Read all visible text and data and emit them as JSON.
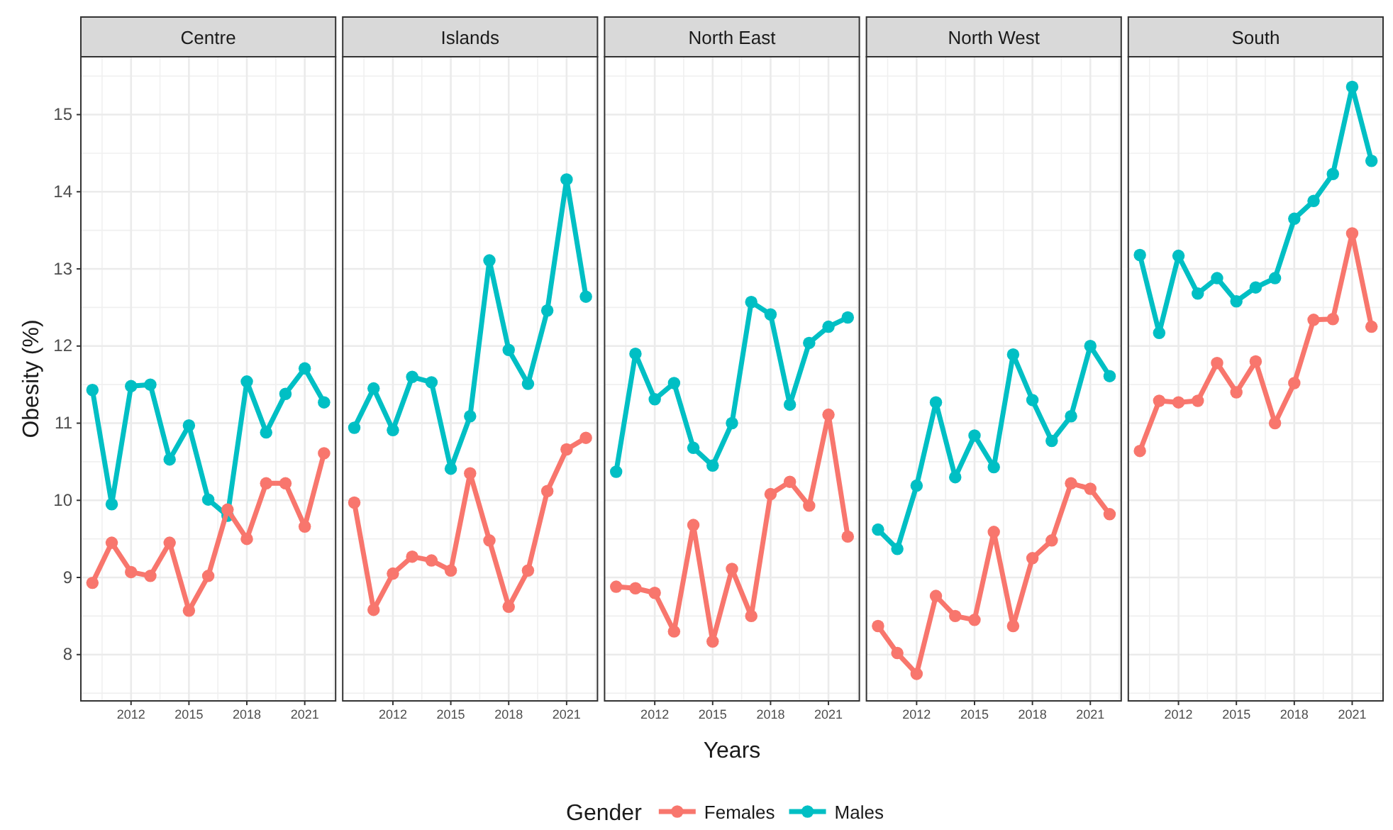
{
  "chart_data": [
    {
      "type": "line",
      "title": "Centre",
      "ylabel": "Obesity (%)",
      "legend_title": "Gender",
      "legend": "bottom",
      "grid": true,
      "marker": "circle",
      "line_style": "solid",
      "x": [
        2010,
        2011,
        2012,
        2013,
        2014,
        2015,
        2016,
        2017,
        2018,
        2019,
        2020,
        2021,
        2022
      ],
      "xlim": [
        2009.4,
        2022.6
      ],
      "xticks": [
        2012,
        2015,
        2018,
        2021
      ],
      "ylim": [
        7.4,
        15.75
      ],
      "yticks": [
        8,
        9,
        10,
        11,
        12,
        13,
        14,
        15
      ],
      "series": [
        {
          "name": "Females",
          "color": "#f8766d",
          "values": [
            8.93,
            9.45,
            9.07,
            9.02,
            9.45,
            8.57,
            9.02,
            9.88,
            9.5,
            10.22,
            10.22,
            9.66,
            10.61
          ]
        },
        {
          "name": "Males",
          "color": "#00bfc4",
          "values": [
            11.43,
            9.95,
            11.48,
            11.5,
            10.53,
            10.97,
            10.01,
            9.8,
            11.54,
            10.88,
            11.38,
            11.71,
            11.27
          ]
        }
      ]
    },
    {
      "type": "line",
      "title": "Islands",
      "tick_labels": "x",
      "grid": true,
      "marker": "circle",
      "line_style": "solid",
      "x": [
        2010,
        2011,
        2012,
        2013,
        2014,
        2015,
        2016,
        2017,
        2018,
        2019,
        2020,
        2021,
        2022
      ],
      "xlim": [
        2009.4,
        2022.6
      ],
      "xticks": [
        2012,
        2015,
        2018,
        2021
      ],
      "ylim": [
        7.4,
        15.75
      ],
      "yticks": [
        8,
        9,
        10,
        11,
        12,
        13,
        14,
        15
      ],
      "series": [
        {
          "color": "#f8766d",
          "values": [
            9.97,
            8.58,
            9.05,
            9.27,
            9.22,
            9.09,
            10.35,
            9.48,
            8.62,
            9.09,
            10.12,
            10.66,
            10.81
          ]
        },
        {
          "color": "#00bfc4",
          "values": [
            10.94,
            11.45,
            10.91,
            11.6,
            11.53,
            10.41,
            11.09,
            13.11,
            11.95,
            11.51,
            12.46,
            14.16,
            12.64
          ]
        }
      ]
    },
    {
      "type": "line",
      "title": "North East",
      "xlabel": "Years",
      "tick_labels": "x",
      "grid": true,
      "marker": "circle",
      "line_style": "solid",
      "x": [
        2010,
        2011,
        2012,
        2013,
        2014,
        2015,
        2016,
        2017,
        2018,
        2019,
        2020,
        2021,
        2022
      ],
      "xlim": [
        2009.4,
        2022.6
      ],
      "xticks": [
        2012,
        2015,
        2018,
        2021
      ],
      "ylim": [
        7.4,
        15.75
      ],
      "yticks": [
        8,
        9,
        10,
        11,
        12,
        13,
        14,
        15
      ],
      "series": [
        {
          "color": "#f8766d",
          "values": [
            8.88,
            8.86,
            8.8,
            8.3,
            9.68,
            8.17,
            9.11,
            8.5,
            10.08,
            10.24,
            9.93,
            11.11,
            9.53
          ]
        },
        {
          "color": "#00bfc4",
          "values": [
            10.37,
            11.9,
            11.31,
            11.52,
            10.68,
            10.45,
            11.0,
            12.57,
            12.41,
            11.24,
            12.04,
            12.25,
            12.37
          ]
        }
      ]
    },
    {
      "type": "line",
      "title": "North West",
      "tick_labels": "x",
      "grid": true,
      "marker": "circle",
      "line_style": "solid",
      "x": [
        2010,
        2011,
        2012,
        2013,
        2014,
        2015,
        2016,
        2017,
        2018,
        2019,
        2020,
        2021,
        2022
      ],
      "xlim": [
        2009.4,
        2022.6
      ],
      "xticks": [
        2012,
        2015,
        2018,
        2021
      ],
      "ylim": [
        7.4,
        15.75
      ],
      "yticks": [
        8,
        9,
        10,
        11,
        12,
        13,
        14,
        15
      ],
      "series": [
        {
          "color": "#f8766d",
          "values": [
            8.37,
            8.02,
            7.75,
            8.76,
            8.5,
            8.45,
            9.59,
            8.37,
            9.25,
            9.48,
            10.22,
            10.15,
            9.82
          ]
        },
        {
          "color": "#00bfc4",
          "values": [
            9.62,
            9.37,
            10.19,
            11.27,
            10.3,
            10.84,
            10.43,
            11.89,
            11.3,
            10.77,
            11.09,
            12.0,
            11.61
          ]
        }
      ]
    },
    {
      "type": "line",
      "title": "South",
      "tick_labels": "x",
      "grid": true,
      "marker": "circle",
      "line_style": "solid",
      "x": [
        2010,
        2011,
        2012,
        2013,
        2014,
        2015,
        2016,
        2017,
        2018,
        2019,
        2020,
        2021,
        2022
      ],
      "xlim": [
        2009.4,
        2022.6
      ],
      "xticks": [
        2012,
        2015,
        2018,
        2021
      ],
      "ylim": [
        7.4,
        15.75
      ],
      "yticks": [
        8,
        9,
        10,
        11,
        12,
        13,
        14,
        15
      ],
      "series": [
        {
          "color": "#f8766d",
          "values": [
            10.64,
            11.29,
            11.27,
            11.29,
            11.78,
            11.4,
            11.8,
            11.0,
            11.52,
            12.34,
            12.35,
            13.46,
            12.25
          ]
        },
        {
          "color": "#00bfc4",
          "values": [
            13.18,
            12.17,
            13.17,
            12.68,
            12.88,
            12.58,
            12.76,
            12.88,
            13.65,
            13.88,
            14.23,
            15.36,
            14.4
          ]
        }
      ]
    }
  ]
}
